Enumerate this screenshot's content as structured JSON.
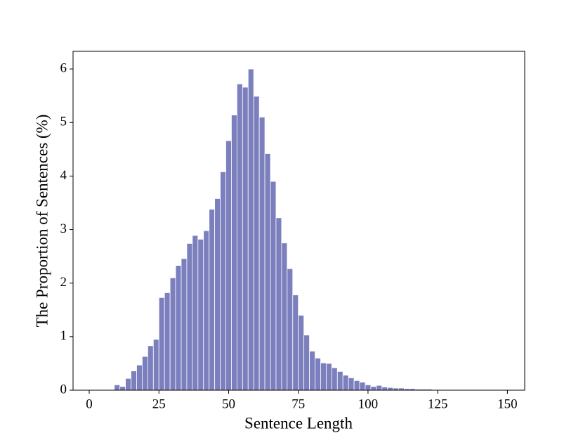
{
  "chart_data": {
    "type": "histogram",
    "xlabel": "Sentence Length",
    "ylabel": "The Proportion of Sentences (%)",
    "bins": [
      9,
      11,
      13,
      15,
      17,
      19,
      21,
      23,
      25,
      27,
      29,
      31,
      33,
      35,
      37,
      39,
      41,
      43,
      45,
      47,
      49,
      51,
      53,
      55,
      57,
      59,
      61,
      63,
      65,
      67,
      69,
      71,
      73,
      75,
      77,
      79,
      81,
      83,
      85,
      87,
      89,
      91,
      93,
      95,
      97,
      99,
      101,
      103,
      105,
      107,
      109,
      111,
      113,
      115,
      117,
      119,
      121,
      123,
      125,
      127,
      129,
      131,
      133,
      135,
      137,
      139,
      141,
      143,
      145,
      147,
      149
    ],
    "values": [
      0.1,
      0.07,
      0.22,
      0.36,
      0.47,
      0.63,
      0.83,
      0.95,
      1.73,
      1.82,
      2.1,
      2.33,
      2.46,
      2.74,
      2.89,
      2.82,
      2.98,
      3.38,
      3.58,
      4.08,
      4.66,
      5.14,
      5.72,
      5.66,
      6.0,
      5.49,
      5.1,
      4.42,
      3.9,
      3.22,
      2.75,
      2.27,
      1.78,
      1.4,
      1.03,
      0.73,
      0.6,
      0.51,
      0.5,
      0.42,
      0.35,
      0.28,
      0.23,
      0.18,
      0.15,
      0.1,
      0.07,
      0.09,
      0.06,
      0.05,
      0.04,
      0.04,
      0.03,
      0.03,
      0.02,
      0.02,
      0.02,
      0.01,
      0.01,
      0.01,
      0.01,
      0,
      0,
      0,
      0,
      0,
      0.01,
      0,
      0.01,
      0
    ],
    "color": "#7b7fbd",
    "xlim": [
      -5.8,
      156.2
    ],
    "xticks": [
      0,
      25,
      50,
      75,
      100,
      125,
      150
    ],
    "ylim": [
      0,
      6.33
    ],
    "yticks": [
      0,
      1,
      2,
      3,
      4,
      5,
      6
    ]
  }
}
